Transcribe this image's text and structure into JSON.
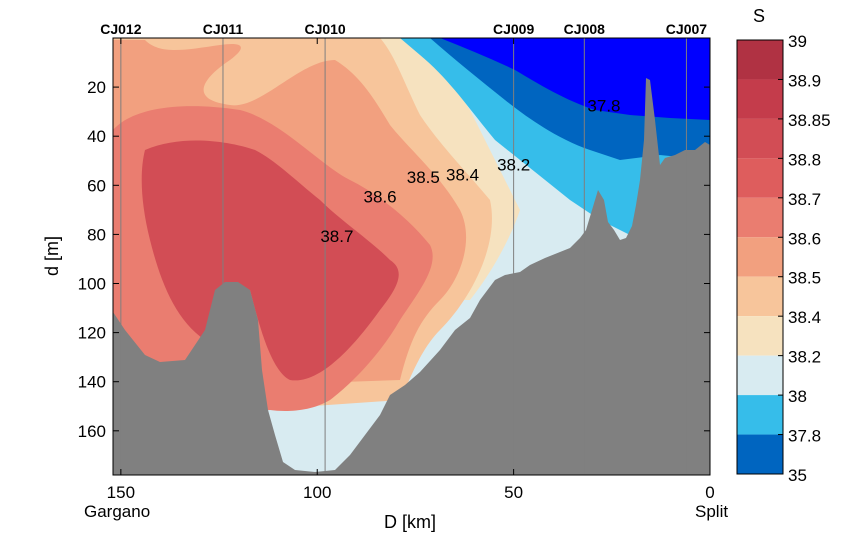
{
  "chart_data": {
    "type": "contour-section",
    "title": "",
    "xlabel": "D [km]",
    "ylabel": "d [m]",
    "xlim": [
      152,
      0
    ],
    "ylim": [
      0,
      178
    ],
    "x_ticks": [
      150,
      100,
      50,
      0
    ],
    "y_ticks": [
      20,
      40,
      60,
      80,
      100,
      120,
      140,
      160
    ],
    "x_end_labels": {
      "left": "Gargano",
      "right": "Split"
    },
    "stations": [
      {
        "name": "CJ012",
        "x": 150
      },
      {
        "name": "CJ011",
        "x": 124
      },
      {
        "name": "CJ010",
        "x": 98
      },
      {
        "name": "CJ009",
        "x": 50
      },
      {
        "name": "CJ008",
        "x": 32
      },
      {
        "name": "CJ007",
        "x": 6
      }
    ],
    "colorbar": {
      "label": "S",
      "levels": [
        "39",
        "38.9",
        "38.85",
        "38.8",
        "38.7",
        "38.6",
        "38.5",
        "38.4",
        "38.2",
        "38",
        "37.8",
        "35"
      ],
      "colors": [
        "#b03243",
        "#c43c4b",
        "#d24d55",
        "#de5d5d",
        "#ea7d70",
        "#f2a07f",
        "#f7c59b",
        "#f6e2bf",
        "#d8ebf1",
        "#36bdea",
        "#0065c0",
        "#0000ff"
      ]
    },
    "contour_labels": [
      {
        "text": "37.8",
        "x": 27,
        "y": 30
      },
      {
        "text": "38.2",
        "x": 50,
        "y": 54
      },
      {
        "text": "38.4",
        "x": 63,
        "y": 58
      },
      {
        "text": "38.5",
        "x": 73,
        "y": 59
      },
      {
        "text": "38.6",
        "x": 84,
        "y": 67
      },
      {
        "text": "38.7",
        "x": 95,
        "y": 83
      }
    ],
    "bathymetry_color": "#808080"
  }
}
